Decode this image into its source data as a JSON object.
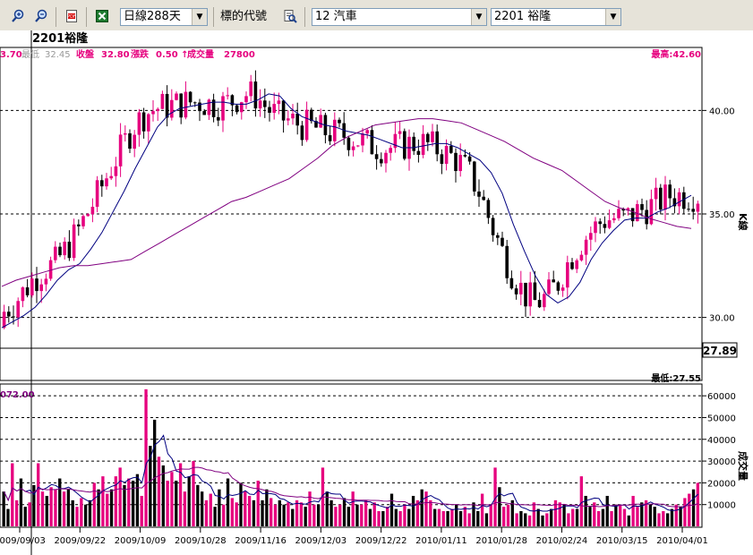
{
  "toolbar": {
    "period_select": "日線288天",
    "label_symbol": "標的代號",
    "category_select": "12 汽車",
    "stock_select": "2201 裕隆"
  },
  "chart_data": [
    {
      "type": "candlestick",
      "title": "2201裕隆",
      "info": {
        "open": "3.70",
        "low_label": "最低",
        "low_value": "32.45",
        "close_label": "收盤",
        "close_value": "32.80",
        "change_label": "漲跌",
        "change_value": "0.50 ↑",
        "volume_label": "成交量",
        "volume_value": "27800"
      },
      "max_label": "最高:42.60",
      "min_label": "最低:27.55",
      "current_price": "27.89",
      "y_axis_label": "K線",
      "ylim": [
        27.0,
        43.0
      ],
      "y_ticks": [
        "30.00",
        "35.00",
        "40.00"
      ],
      "grid": true,
      "ma_short": [
        29.5,
        29.8,
        30.1,
        30.5,
        31.1,
        31.8,
        32.3,
        32.6,
        33.3,
        34.1,
        35.1,
        36.1,
        37.2,
        38.2,
        39.2,
        39.8,
        40.1,
        40.2,
        40.3,
        40.4,
        40.4,
        40.3,
        40.3,
        40.5,
        40.8,
        40.7,
        40.1,
        39.7,
        39.5,
        39.3,
        39.2,
        39.0,
        38.9,
        38.8,
        38.6,
        38.4,
        38.2,
        38.2,
        38.3,
        38.4,
        38.4,
        38.2,
        37.9,
        37.6,
        37.0,
        36.0,
        34.5,
        33.2,
        32.0,
        31.1,
        30.7,
        31.0,
        31.7,
        32.8,
        33.6,
        34.2,
        34.7,
        34.8,
        34.8,
        35.1,
        35.3,
        35.6,
        35.9
      ],
      "ma_long": [
        31.5,
        31.8,
        32.0,
        32.2,
        32.4,
        32.5,
        32.5,
        32.6,
        32.7,
        32.8,
        33.2,
        33.6,
        34.0,
        34.4,
        34.8,
        35.2,
        35.6,
        35.8,
        36.1,
        36.4,
        36.7,
        37.2,
        37.7,
        38.3,
        38.7,
        39.0,
        39.3,
        39.4,
        39.5,
        39.6,
        39.6,
        39.5,
        39.4,
        39.1,
        38.8,
        38.5,
        38.1,
        37.7,
        37.4,
        37.1,
        36.6,
        36.1,
        35.6,
        35.3,
        35.1,
        34.8,
        34.6,
        34.4,
        34.3
      ]
    },
    {
      "type": "bar",
      "title": "成交量",
      "header_value": "072.00",
      "ylim": [
        0,
        65000
      ],
      "y_ticks": [
        "10000",
        "20000",
        "30000",
        "40000",
        "50000",
        "60000"
      ],
      "x_labels": [
        "2009/09/03",
        "2009/09/22",
        "2009/10/09",
        "2009/10/28",
        "2009/11/16",
        "2009/12/03",
        "2009/12/22",
        "2010/01/11",
        "2010/01/28",
        "2010/02/24",
        "2010/03/15",
        "2010/04/01"
      ],
      "values": [
        16000,
        8000,
        29000,
        12000,
        22000,
        9000,
        11000,
        19000,
        29000,
        16000,
        14000,
        18000,
        17000,
        22000,
        16000,
        17000,
        12000,
        9000,
        13000,
        10000,
        12000,
        20000,
        17000,
        23000,
        15000,
        17000,
        23000,
        27000,
        19000,
        22000,
        21000,
        24000,
        14000,
        63000,
        37000,
        49000,
        32000,
        28000,
        21000,
        25000,
        21000,
        29000,
        16000,
        23000,
        30000,
        19000,
        16000,
        12000,
        15000,
        9000,
        17000,
        10000,
        22000,
        13000,
        11000,
        20000,
        16000,
        14000,
        12000,
        21000,
        12000,
        17000,
        13000,
        10000,
        12000,
        10000,
        11000,
        8000,
        12000,
        11000,
        9000,
        16000,
        10000,
        10000,
        27000,
        16000,
        12000,
        9000,
        10000,
        13000,
        9000,
        16000,
        10000,
        10000,
        12000,
        8000,
        11000,
        7000,
        7000,
        9000,
        15000,
        8000,
        7000,
        10000,
        8000,
        14000,
        12000,
        17000,
        16000,
        12000,
        8000,
        8000,
        7000,
        7000,
        8000,
        10000,
        7000,
        9000,
        6000,
        11000,
        7000,
        15000,
        6000,
        10000,
        27000,
        18000,
        9000,
        10000,
        12000,
        6000,
        7000,
        6000,
        5000,
        11000,
        8000,
        5000,
        6000,
        8000,
        12000,
        11000,
        10000,
        6000,
        8000,
        8000,
        23000,
        14000,
        9000,
        11000,
        7000,
        8000,
        14000,
        7000,
        10000,
        10000,
        8000,
        5000,
        14000,
        9000,
        11000,
        12000,
        10000,
        9000,
        6000,
        7000,
        6000,
        8000,
        10000,
        9000,
        13000,
        15000,
        17000,
        20000
      ],
      "colors": {
        "up": "#e6007e",
        "down": "#000000",
        "ma_short": "#000080",
        "ma_long": "#800080"
      }
    }
  ]
}
